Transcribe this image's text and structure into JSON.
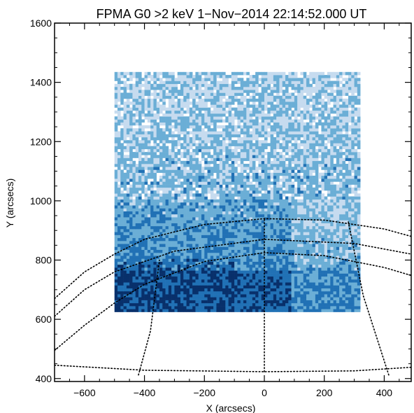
{
  "chart_data": {
    "type": "heatmap",
    "title": "FPMA G0 >2 keV  1−Nov−2014 22:14:52.000 UT",
    "xlabel": "X (arcsecs)",
    "ylabel": "Y (arcsecs)",
    "xlim": [
      -700,
      490
    ],
    "ylim": [
      390,
      1600
    ],
    "x_ticks": [
      -600,
      -400,
      -200,
      0,
      200,
      400
    ],
    "y_ticks": [
      400,
      600,
      800,
      1000,
      1200,
      1400,
      1600
    ],
    "x_tick_labels": [
      "−600",
      "−400",
      "−200",
      "0",
      "200",
      "400"
    ],
    "y_tick_labels": [
      "400",
      "600",
      "800",
      "1000",
      "1200",
      "1400",
      "1600"
    ],
    "data_region": {
      "x_range": [
        -500,
        320
      ],
      "y_range": [
        625,
        1430
      ]
    },
    "intensity_profile": [
      {
        "y_range": [
          625,
          760
        ],
        "level": "high"
      },
      {
        "y_range": [
          760,
          1000
        ],
        "level": "medium-high"
      },
      {
        "y_range": [
          1000,
          1430
        ],
        "level": "low"
      }
    ],
    "solar_grid": {
      "style": "dotted",
      "visible": true,
      "limb_points": [
        [
          -700,
          670
        ],
        [
          -600,
          760
        ],
        [
          -500,
          820
        ],
        [
          -400,
          870
        ],
        [
          -200,
          920
        ],
        [
          0,
          940
        ],
        [
          200,
          935
        ],
        [
          400,
          905
        ],
        [
          490,
          880
        ]
      ],
      "latitude_lines": [
        [
          [
            -700,
            445
          ],
          [
            -400,
            428
          ],
          [
            0,
            423
          ],
          [
            300,
            426
          ],
          [
            490,
            438
          ]
        ],
        [
          [
            -700,
            495
          ],
          [
            -600,
            580
          ],
          [
            -500,
            655
          ],
          [
            -400,
            718
          ],
          [
            -200,
            795
          ],
          [
            0,
            825
          ],
          [
            200,
            815
          ],
          [
            400,
            775
          ],
          [
            490,
            748
          ]
        ],
        [
          [
            -700,
            610
          ],
          [
            -600,
            700
          ],
          [
            -500,
            760
          ],
          [
            -300,
            830
          ],
          [
            0,
            870
          ],
          [
            300,
            856
          ],
          [
            490,
            820
          ]
        ]
      ],
      "longitude_lines": [
        [
          [
            -420,
            412
          ],
          [
            -380,
            560
          ],
          [
            -350,
            800
          ]
        ],
        [
          [
            0,
            423
          ],
          [
            0,
            640
          ],
          [
            0,
            940
          ]
        ],
        [
          [
            415,
            412
          ],
          [
            330,
            680
          ],
          [
            280,
            930
          ]
        ]
      ],
      "color": "#000000"
    },
    "colors": {
      "high": "#08306b",
      "medium": "#2171b5",
      "low": "#6baed6",
      "faint": "#c6dbef"
    },
    "grid": false,
    "legend": "none"
  }
}
